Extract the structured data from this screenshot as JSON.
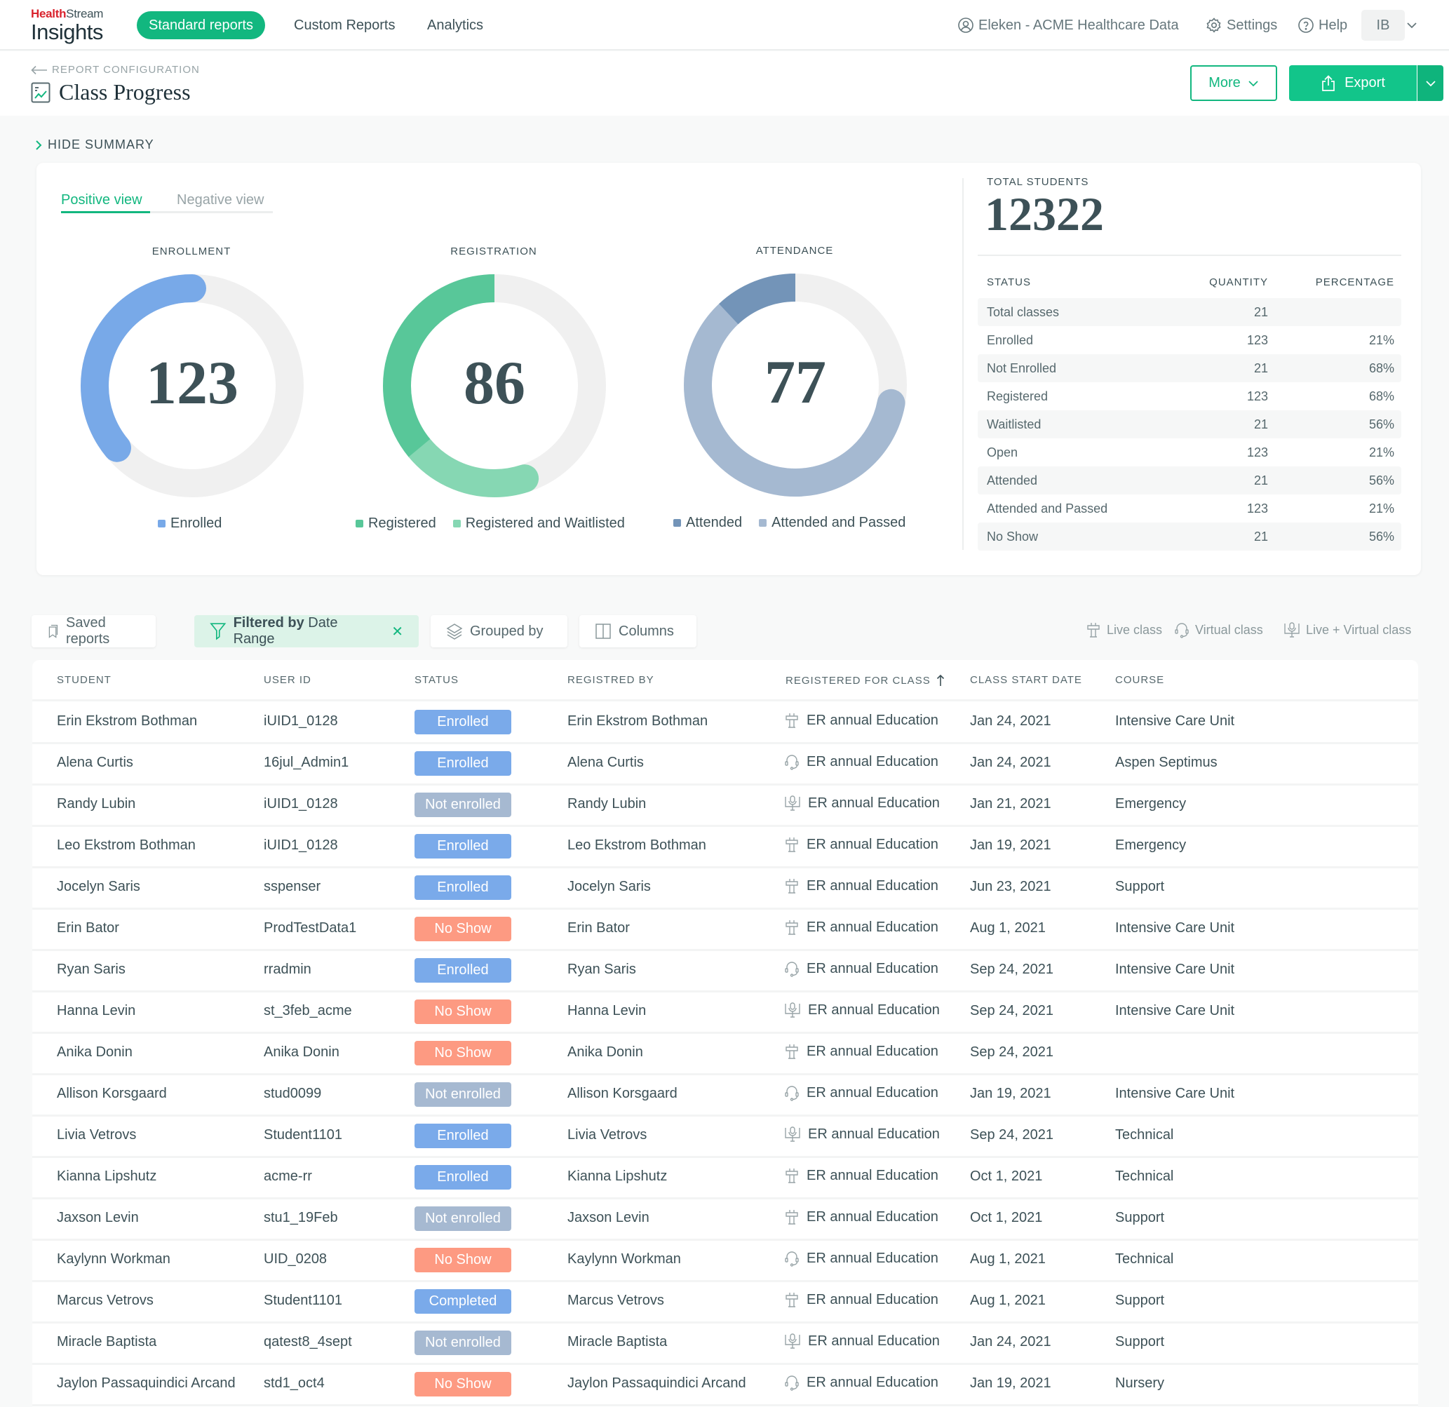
{
  "brand": {
    "health": "Health",
    "stream": "Stream",
    "product": "Insights"
  },
  "nav": {
    "tabs": [
      {
        "label": "Standard reports",
        "active": true
      },
      {
        "label": "Custom Reports",
        "active": false
      },
      {
        "label": "Analytics",
        "active": false
      }
    ],
    "org": "Eleken - ACME Healthcare Data",
    "settings": "Settings",
    "help": "Help",
    "avatar_initials": "IB"
  },
  "header": {
    "back_label": "REPORT CONFIGURATION",
    "title": "Class Progress",
    "more_label": "More",
    "export_label": "Export"
  },
  "summary": {
    "toggle_label": "HIDE SUMMARY",
    "tabs": {
      "positive": "Positive view",
      "negative": "Negative view"
    },
    "total_label": "TOTAL STUDENTS",
    "total_value": "12322",
    "stats": {
      "headers": {
        "status": "STATUS",
        "quantity": "QUANTITY",
        "percentage": "PERCENTAGE"
      },
      "rows": [
        {
          "status": "Total classes",
          "quantity": "21",
          "percentage": ""
        },
        {
          "status": "Enrolled",
          "quantity": "123",
          "percentage": "21%"
        },
        {
          "status": "Not Enrolled",
          "quantity": "21",
          "percentage": "68%"
        },
        {
          "status": "Registered",
          "quantity": "123",
          "percentage": "68%"
        },
        {
          "status": "Waitlisted",
          "quantity": "21",
          "percentage": "56%"
        },
        {
          "status": "Open",
          "quantity": "123",
          "percentage": "21%"
        },
        {
          "status": "Attended",
          "quantity": "21",
          "percentage": "56%"
        },
        {
          "status": "Attended and Passed",
          "quantity": "123",
          "percentage": "21%"
        },
        {
          "status": "No Show",
          "quantity": "21",
          "percentage": "56%"
        }
      ]
    },
    "donuts": [
      {
        "title": "ENROLLMENT",
        "value": "123",
        "segments": [
          {
            "label": "Enrolled",
            "color": "#78a9e8",
            "start": 0.0,
            "end": 0.36
          }
        ],
        "track_color": "#f0f0f0"
      },
      {
        "title": "REGISTRATION",
        "value": "86",
        "segments": [
          {
            "label": "Registered",
            "color": "#58c799",
            "start": 0.0,
            "end": 0.36
          },
          {
            "label": "Registered and Waitlisted",
            "color": "#86d7b3",
            "start": 0.36,
            "end": 0.55
          }
        ],
        "track_color": "#f0f0f0"
      },
      {
        "title": "ATTENDANCE",
        "value": "77",
        "segments": [
          {
            "label": "Attended",
            "color": "#7394b8",
            "start": 0.0,
            "end": 0.12
          },
          {
            "label": "Attended and Passed",
            "color": "#a5b9d1",
            "start": 0.12,
            "end": 0.72
          }
        ],
        "track_color": "#f0f0f0"
      }
    ]
  },
  "toolbar": {
    "saved_reports": "Saved reports",
    "filter_prefix": "Filtered by",
    "filter_value": "Date Range",
    "grouped_by": "Grouped by",
    "columns": "Columns",
    "legend": {
      "live": "Live class",
      "virtual": "Virtual class",
      "live_virtual": "Live + Virtual class"
    }
  },
  "table": {
    "headers": {
      "student": "STUDENT",
      "user_id": "USER ID",
      "status": "STATUS",
      "registered_by": "REGISTRED BY",
      "class": "REGISTERED FOR CLASS",
      "start_date": "CLASS START DATE",
      "course": "COURSE"
    },
    "rows": [
      {
        "student": "Erin Ekstrom Bothman",
        "user_id": "iUID1_0128",
        "status": "Enrolled",
        "status_type": "enrolled",
        "registered_by": "Erin Ekstrom Bothman",
        "class_type": "live",
        "class": "ER annual Education",
        "start_date": "Jan 24, 2021",
        "course": "Intensive Care Unit"
      },
      {
        "student": "Alena Curtis",
        "user_id": "16jul_Admin1",
        "status": "Enrolled",
        "status_type": "enrolled",
        "registered_by": "Alena Curtis",
        "class_type": "virtual",
        "class": "ER annual Education",
        "start_date": "Jan 24, 2021",
        "course": "Aspen Septimus"
      },
      {
        "student": "Randy Lubin",
        "user_id": "iUID1_0128",
        "status": "Not enrolled",
        "status_type": "not-enrolled",
        "registered_by": "Randy Lubin",
        "class_type": "live-virtual",
        "class": "ER annual Education",
        "start_date": "Jan 21, 2021",
        "course": "Emergency"
      },
      {
        "student": "Leo Ekstrom Bothman",
        "user_id": "iUID1_0128",
        "status": "Enrolled",
        "status_type": "enrolled",
        "registered_by": "Leo Ekstrom Bothman",
        "class_type": "live",
        "class": "ER annual Education",
        "start_date": "Jan 19, 2021",
        "course": "Emergency"
      },
      {
        "student": "Jocelyn Saris",
        "user_id": "sspenser",
        "status": "Enrolled",
        "status_type": "enrolled",
        "registered_by": "Jocelyn Saris",
        "class_type": "live",
        "class": "ER annual Education",
        "start_date": "Jun 23, 2021",
        "course": "Support"
      },
      {
        "student": "Erin Bator",
        "user_id": "ProdTestData1",
        "status": "No Show",
        "status_type": "no-show",
        "registered_by": "Erin Bator",
        "class_type": "live",
        "class": "ER annual Education",
        "start_date": "Aug 1, 2021",
        "course": "Intensive Care Unit"
      },
      {
        "student": "Ryan Saris",
        "user_id": "rradmin",
        "status": "Enrolled",
        "status_type": "enrolled",
        "registered_by": "Ryan Saris",
        "class_type": "virtual",
        "class": "ER annual Education",
        "start_date": "Sep 24, 2021",
        "course": "Intensive Care Unit"
      },
      {
        "student": "Hanna Levin",
        "user_id": "st_3feb_acme",
        "status": "No Show",
        "status_type": "no-show",
        "registered_by": "Hanna Levin",
        "class_type": "live-virtual",
        "class": "ER annual Education",
        "start_date": "Sep 24, 2021",
        "course": "Intensive Care Unit"
      },
      {
        "student": "Anika Donin",
        "user_id": "Anika Donin",
        "status": "No Show",
        "status_type": "no-show",
        "registered_by": "Anika Donin",
        "class_type": "live",
        "class": "ER annual Education",
        "start_date": "Sep 24, 2021",
        "course": ""
      },
      {
        "student": "Allison Korsgaard",
        "user_id": "stud0099",
        "status": "Not enrolled",
        "status_type": "not-enrolled",
        "registered_by": "Allison Korsgaard",
        "class_type": "virtual",
        "class": "ER annual Education",
        "start_date": "Jan 19, 2021",
        "course": "Intensive Care Unit"
      },
      {
        "student": "Livia Vetrovs",
        "user_id": "Student1101",
        "status": "Enrolled",
        "status_type": "enrolled",
        "registered_by": "Livia Vetrovs",
        "class_type": "live-virtual",
        "class": "ER annual Education",
        "start_date": "Sep 24, 2021",
        "course": "Technical"
      },
      {
        "student": "Kianna Lipshutz",
        "user_id": "acme-rr",
        "status": "Enrolled",
        "status_type": "enrolled",
        "registered_by": "Kianna Lipshutz",
        "class_type": "live",
        "class": "ER annual Education",
        "start_date": "Oct 1, 2021",
        "course": "Technical"
      },
      {
        "student": "Jaxson Levin",
        "user_id": "stu1_19Feb",
        "status": "Not enrolled",
        "status_type": "not-enrolled",
        "registered_by": "Jaxson Levin",
        "class_type": "live",
        "class": "ER annual Education",
        "start_date": "Oct 1, 2021",
        "course": "Support"
      },
      {
        "student": "Kaylynn Workman",
        "user_id": "UID_0208",
        "status": "No Show",
        "status_type": "no-show",
        "registered_by": "Kaylynn Workman",
        "class_type": "virtual",
        "class": "ER annual Education",
        "start_date": "Aug 1, 2021",
        "course": "Technical"
      },
      {
        "student": "Marcus Vetrovs",
        "user_id": "Student1101",
        "status": "Completed",
        "status_type": "completed",
        "registered_by": "Marcus Vetrovs",
        "class_type": "live",
        "class": "ER annual Education",
        "start_date": "Aug 1, 2021",
        "course": "Support"
      },
      {
        "student": "Miracle Baptista",
        "user_id": "qatest8_4sept",
        "status": "Not enrolled",
        "status_type": "not-enrolled",
        "registered_by": "Miracle Baptista",
        "class_type": "live-virtual",
        "class": "ER annual Education",
        "start_date": "Jan 24, 2021",
        "course": "Support"
      },
      {
        "student": "Jaylon Passaquindici Arcand",
        "user_id": "std1_oct4",
        "status": "No Show",
        "status_type": "no-show",
        "registered_by": "Jaylon Passaquindici Arcand",
        "class_type": "virtual",
        "class": "ER annual Education",
        "start_date": "Jan 19, 2021",
        "course": "Nursery"
      }
    ]
  },
  "colors": {
    "accent": "#12b77f",
    "enrolled": "#7aaaea",
    "not_enrolled": "#a6b9d1",
    "no_show": "#fd9a82"
  }
}
